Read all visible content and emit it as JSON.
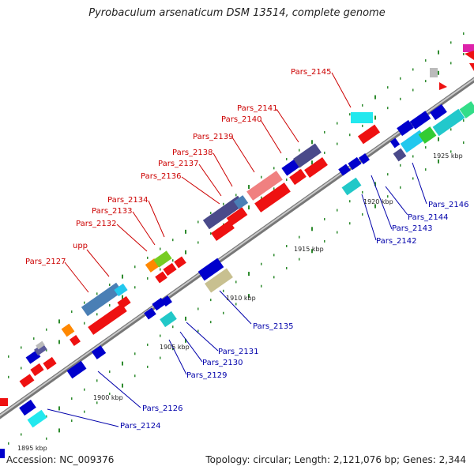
{
  "title": "Pyrobaculum arsenaticum DSM 13514, complete genome",
  "footer": {
    "accession": "Accession: NC_009376",
    "stats": "Topology: circular; Length: 2,121,076 bp; Genes: 2,344"
  },
  "colors": {
    "top_label": "#cc0000",
    "bottom_label": "#0000aa",
    "axis": "#888888",
    "tick": "#2e8b2e"
  },
  "kbp_ticks": [
    {
      "label": "1895 kbp"
    },
    {
      "label": "1900 kbp"
    },
    {
      "label": "1905 kbp"
    },
    {
      "label": "1910 kbp"
    },
    {
      "label": "1915 kbp"
    },
    {
      "label": "1920 kbp"
    },
    {
      "label": "1925 kbp"
    }
  ],
  "top_labels": [
    "Pars_2145",
    "Pars_2141",
    "Pars_2140",
    "Pars_2139",
    "Pars_2138",
    "Pars_2137",
    "Pars_2136",
    "Pars_2134",
    "Pars_2133",
    "Pars_2132",
    "upp",
    "Pars_2127"
  ],
  "bottom_labels": [
    "Pars_2146",
    "Pars_2144",
    "Pars_2143",
    "Pars_2142",
    "Pars_2135",
    "Pars_2131",
    "Pars_2130",
    "Pars_2129",
    "Pars_2126",
    "Pars_2124"
  ]
}
